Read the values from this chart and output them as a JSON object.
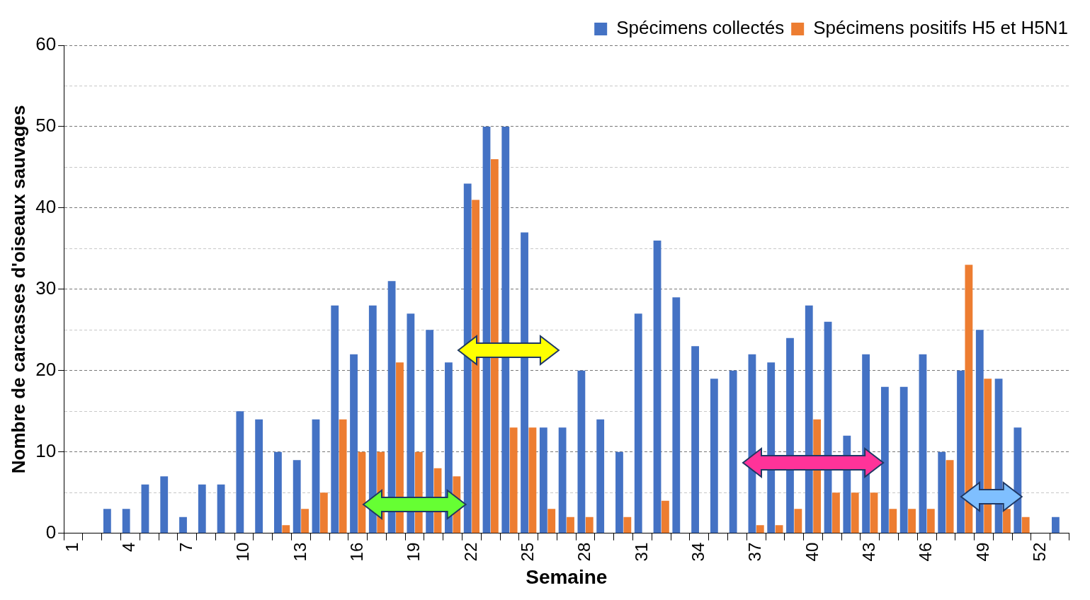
{
  "chart_data": {
    "type": "bar",
    "xlabel": "Semaine",
    "ylabel": "Nombre de carcasses d'oiseaux sauvages",
    "categories": [
      "1",
      null,
      null,
      "4",
      null,
      null,
      "7",
      null,
      null,
      "10",
      null,
      null,
      "13",
      null,
      null,
      "16",
      null,
      null,
      "19",
      null,
      null,
      "22",
      null,
      null,
      "25",
      null,
      null,
      "28",
      null,
      null,
      "31",
      null,
      null,
      "34",
      null,
      null,
      "37",
      null,
      null,
      "40",
      null,
      null,
      "43",
      null,
      null,
      "46",
      null,
      null,
      "49",
      null,
      null,
      "52",
      null
    ],
    "series": [
      {
        "name": "Spécimens collectés",
        "color": "#4472c4",
        "values": [
          0,
          0,
          3,
          3,
          6,
          7,
          2,
          6,
          6,
          15,
          14,
          10,
          9,
          14,
          28,
          22,
          28,
          31,
          27,
          25,
          21,
          43,
          50,
          50,
          37,
          13,
          13,
          20,
          14,
          10,
          27,
          36,
          29,
          23,
          19,
          20,
          22,
          21,
          24,
          28,
          26,
          12,
          22,
          18,
          18,
          22,
          10,
          20,
          25,
          19,
          13,
          0,
          2
        ]
      },
      {
        "name": "Spécimens positifs H5 et H5N1",
        "color": "#ed7d31",
        "values": [
          0,
          0,
          0,
          0,
          0,
          0,
          0,
          0,
          0,
          0,
          0,
          1,
          3,
          5,
          14,
          10,
          10,
          21,
          10,
          8,
          7,
          41,
          46,
          13,
          13,
          3,
          2,
          2,
          0,
          2,
          0,
          4,
          0,
          0,
          0,
          0,
          1,
          1,
          3,
          14,
          5,
          5,
          5,
          3,
          3,
          3,
          9,
          33,
          19,
          3,
          2,
          0,
          0
        ]
      }
    ],
    "ylim": [
      0,
      60
    ],
    "yticks": [
      0,
      {
        "value": 5,
        "label": null
      },
      10,
      {
        "value": 15,
        "label": null
      },
      20,
      {
        "value": 25,
        "label": null
      },
      30,
      {
        "value": 35,
        "label": null
      },
      40,
      {
        "value": 45,
        "label": null
      },
      50,
      {
        "value": 55,
        "label": null
      },
      60
    ],
    "grid": "y",
    "legend": "top right"
  }
}
